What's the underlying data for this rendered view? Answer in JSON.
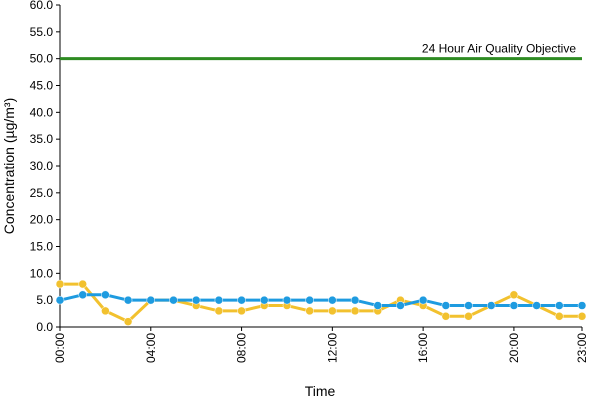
{
  "chart_data": {
    "type": "line",
    "xlabel": "Time",
    "ylabel": "Concentration (µg/m³)",
    "ylim": [
      0,
      60
    ],
    "y_ticks": [
      "0.0",
      "5.0",
      "10.0",
      "15.0",
      "20.0",
      "25.0",
      "30.0",
      "35.0",
      "40.0",
      "45.0",
      "50.0",
      "55.0",
      "60.0"
    ],
    "x_tick_labels": [
      "00:00",
      "04:00",
      "08:00",
      "12:00",
      "16:00",
      "20:00",
      "23:00"
    ],
    "x_tick_hours": [
      0,
      4,
      8,
      12,
      16,
      20,
      23
    ],
    "x": [
      0,
      1,
      2,
      3,
      4,
      5,
      6,
      7,
      8,
      9,
      10,
      11,
      12,
      13,
      14,
      15,
      16,
      17,
      18,
      19,
      20,
      21,
      22,
      23
    ],
    "series": [
      {
        "color": "#f2c12e",
        "values": [
          8,
          8,
          3,
          1,
          5,
          5,
          4,
          3,
          3,
          4,
          4,
          3,
          3,
          3,
          3,
          5,
          4,
          2,
          2,
          4,
          6,
          4,
          2,
          2
        ]
      },
      {
        "color": "#1e9be0",
        "values": [
          5,
          6,
          6,
          5,
          5,
          5,
          5,
          5,
          5,
          5,
          5,
          5,
          5,
          5,
          4,
          4,
          5,
          4,
          4,
          4,
          4,
          4,
          4,
          4
        ]
      }
    ],
    "reference_line": {
      "label": "24 Hour Air Quality Objective",
      "value": 50,
      "color": "#2e8b22"
    },
    "grid": false,
    "legend": "none"
  }
}
